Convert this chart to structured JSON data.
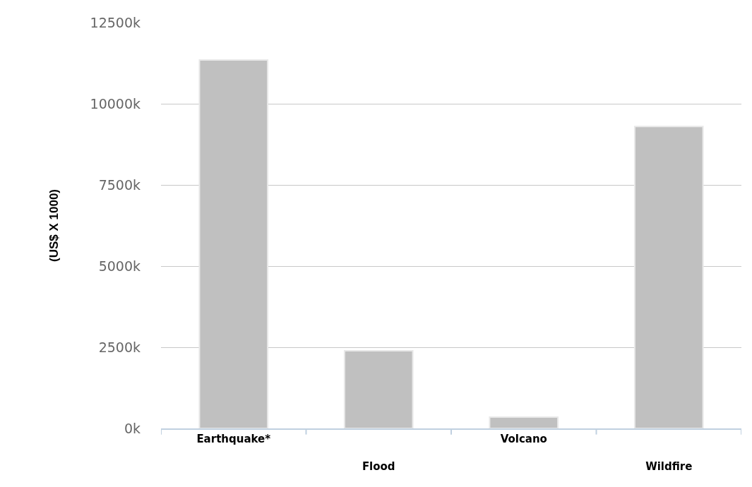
{
  "chart_data": {
    "type": "bar",
    "ylabel": "(US$ X 1000)",
    "categories": [
      "Earthquake*",
      "Flood",
      "Volcano",
      "Wildfire"
    ],
    "values": [
      11350,
      2390,
      350,
      9300
    ],
    "color": "#c0c0c0",
    "ylim": [
      0,
      12500
    ],
    "yticks": [
      {
        "value": 0,
        "label": "0k"
      },
      {
        "value": 2500,
        "label": "2500k"
      },
      {
        "value": 5000,
        "label": "5000k"
      },
      {
        "value": 7500,
        "label": "7500k"
      },
      {
        "value": 10000,
        "label": "10000k"
      },
      {
        "value": 12500,
        "label": "12500k"
      }
    ],
    "grid": "y",
    "legend": false
  }
}
